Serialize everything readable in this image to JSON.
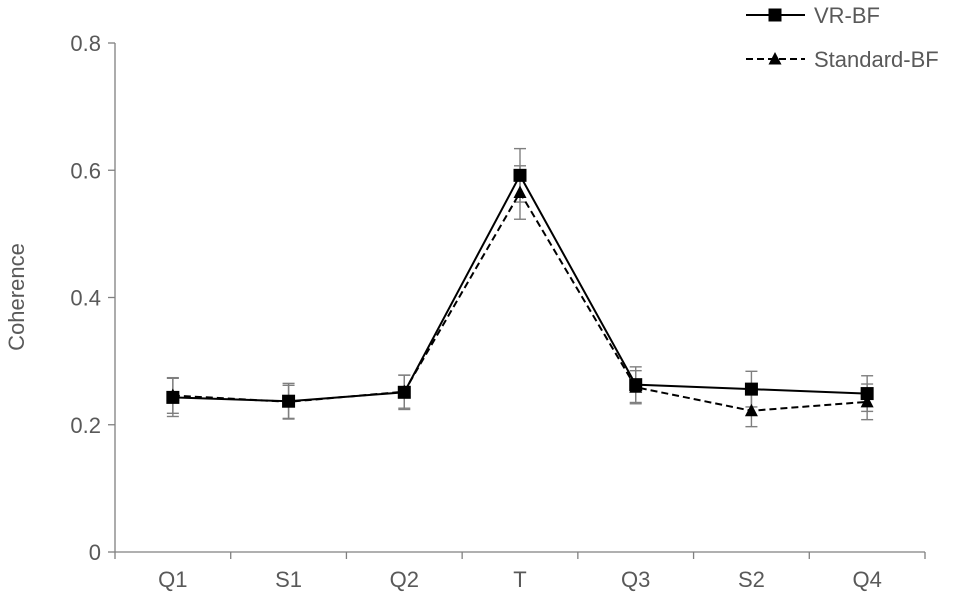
{
  "chart_data": {
    "type": "line",
    "title": "",
    "xlabel": "",
    "ylabel": "Coherence",
    "categories": [
      "Q1",
      "S1",
      "Q2",
      "T",
      "Q3",
      "S2",
      "Q4"
    ],
    "ylim": [
      0,
      0.8
    ],
    "yticks": [
      "0",
      "0.2",
      "0.4",
      "0.6",
      "0.8"
    ],
    "legend_position": "top-right",
    "grid": false,
    "series": [
      {
        "name": "VR-BF",
        "line_style": "solid",
        "marker": "square",
        "color": "#000000",
        "values": [
          0.243,
          0.237,
          0.251,
          0.592,
          0.263,
          0.256,
          0.249
        ],
        "error": [
          0.03,
          0.028,
          0.027,
          0.042,
          0.028,
          0.028,
          0.028
        ]
      },
      {
        "name": "Standard-BF",
        "line_style": "dashed",
        "marker": "triangle",
        "color": "#000000",
        "values": [
          0.246,
          0.236,
          0.252,
          0.565,
          0.259,
          0.222,
          0.236
        ],
        "error": [
          0.028,
          0.026,
          0.026,
          0.042,
          0.026,
          0.025,
          0.028
        ]
      }
    ]
  }
}
